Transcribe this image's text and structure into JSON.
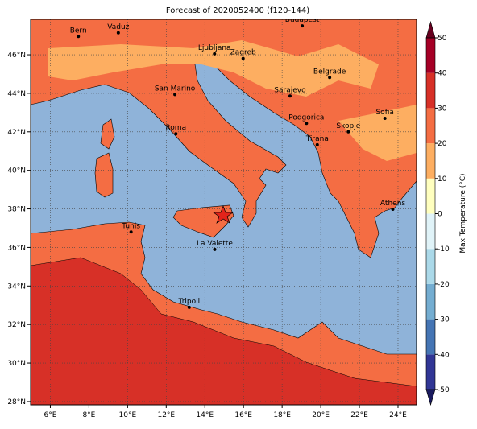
{
  "title": "Forecast of 2020052400 (f120-144)",
  "map": {
    "lonlim": [
      4.98,
      24.96
    ],
    "latlim": [
      27.83,
      47.84
    ],
    "lonticks": [
      {
        "value": 6,
        "label": "6°E"
      },
      {
        "value": 8,
        "label": "8°E"
      },
      {
        "value": 10,
        "label": "10°E"
      },
      {
        "value": 12,
        "label": "12°E"
      },
      {
        "value": 14,
        "label": "14°E"
      },
      {
        "value": 16,
        "label": "16°E"
      },
      {
        "value": 18,
        "label": "18°E"
      },
      {
        "value": 20,
        "label": "20°E"
      },
      {
        "value": 22,
        "label": "22°E"
      },
      {
        "value": 24,
        "label": "24°E"
      }
    ],
    "latticks": [
      {
        "value": 28,
        "label": "28°N"
      },
      {
        "value": 30,
        "label": "30°N"
      },
      {
        "value": 32,
        "label": "32°N"
      },
      {
        "value": 34,
        "label": "34°N"
      },
      {
        "value": 36,
        "label": "36°N"
      },
      {
        "value": 38,
        "label": "38°N"
      },
      {
        "value": 40,
        "label": "40°N"
      },
      {
        "value": 42,
        "label": "42°N"
      },
      {
        "value": 44,
        "label": "44°N"
      },
      {
        "value": 46,
        "label": "46°N"
      }
    ],
    "cities": [
      {
        "name": "Bern",
        "lon": 7.45,
        "lat": 46.95
      },
      {
        "name": "Vaduz",
        "lon": 9.52,
        "lat": 47.14
      },
      {
        "name": "Budapest",
        "lon": 19.04,
        "lat": 47.5
      },
      {
        "name": "Ljubljana",
        "lon": 14.5,
        "lat": 46.05
      },
      {
        "name": "Zagreb",
        "lon": 15.98,
        "lat": 45.81
      },
      {
        "name": "Belgrade",
        "lon": 20.46,
        "lat": 44.82
      },
      {
        "name": "Sarajevo",
        "lon": 18.41,
        "lat": 43.86
      },
      {
        "name": "San Marino",
        "lon": 12.45,
        "lat": 43.94
      },
      {
        "name": "Sofia",
        "lon": 23.32,
        "lat": 42.7
      },
      {
        "name": "Podgorica",
        "lon": 19.26,
        "lat": 42.44
      },
      {
        "name": "Skopje",
        "lon": 21.43,
        "lat": 42.0
      },
      {
        "name": "Roma",
        "lon": 12.5,
        "lat": 41.9
      },
      {
        "name": "Tirana",
        "lon": 19.82,
        "lat": 41.33
      },
      {
        "name": "Athens",
        "lon": 23.73,
        "lat": 37.98
      },
      {
        "name": "Tunis",
        "lon": 10.18,
        "lat": 36.8
      },
      {
        "name": "La Valette",
        "lon": 14.51,
        "lat": 35.9
      },
      {
        "name": "Tripoli",
        "lon": 13.19,
        "lat": 32.89
      }
    ]
  },
  "colorbar": {
    "label": "Max Temperature (°C)",
    "lim": [
      -50,
      50
    ],
    "ticks": [
      -50,
      -40,
      -30,
      -20,
      -10,
      0,
      10,
      20,
      30,
      40,
      50
    ],
    "colors": [
      "#313695",
      "#4575b4",
      "#74add1",
      "#abd9e9",
      "#e0f3f8",
      "#ffffbf",
      "#fdae61",
      "#f46d43",
      "#d73027",
      "#a50026"
    ],
    "under": "#1a1a5e",
    "over": "#67001f"
  }
}
